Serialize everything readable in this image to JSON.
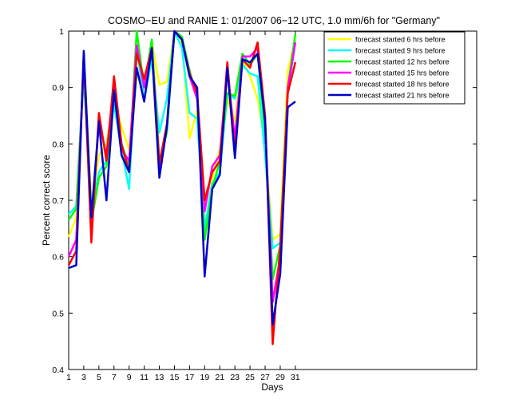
{
  "chart_data": {
    "type": "line",
    "title": "COSMO−EU and RANIE 1: 01/2007 06−12 UTC, 1.0 mm/6h for \"Germany\"",
    "xlabel": "Days",
    "ylabel": "Percent correct score",
    "xlim": [
      1,
      55
    ],
    "ylim": [
      0.4,
      1.0
    ],
    "xticks": [
      1,
      3,
      5,
      7,
      9,
      11,
      13,
      15,
      17,
      19,
      21,
      23,
      25,
      27,
      29,
      31
    ],
    "yticks": [
      0.4,
      0.5,
      0.6,
      0.7,
      0.8,
      0.9,
      1.0
    ],
    "ytick_labels": [
      "0.4",
      "0.5",
      "0.6",
      "0.7",
      "0.8",
      "0.9",
      "1"
    ],
    "legend_position": "top-right",
    "grid": false,
    "x": [
      1,
      2,
      3,
      4,
      5,
      6,
      7,
      8,
      9,
      10,
      11,
      12,
      13,
      14,
      15,
      16,
      17,
      18,
      19,
      20,
      21,
      22,
      23,
      24,
      25,
      26,
      27,
      28,
      29,
      30,
      31
    ],
    "series": [
      {
        "name": "forecast started 6 hrs before",
        "color": "#ffff00",
        "values": [
          0.635,
          0.67,
          0.94,
          0.7,
          0.78,
          0.8,
          0.88,
          0.83,
          0.79,
          0.92,
          0.9,
          0.98,
          0.905,
          0.91,
          1.0,
          0.98,
          0.81,
          0.86,
          0.64,
          0.74,
          0.79,
          0.88,
          0.84,
          0.95,
          0.92,
          0.88,
          0.8,
          0.63,
          0.64,
          0.93,
          0.985
        ]
      },
      {
        "name": "forecast started 9 hrs before",
        "color": "#00ffff",
        "values": [
          0.675,
          0.69,
          0.92,
          0.68,
          0.75,
          0.77,
          0.87,
          0.79,
          0.72,
          0.97,
          0.88,
          0.95,
          0.82,
          0.88,
          1.0,
          0.97,
          0.855,
          0.845,
          0.65,
          0.73,
          0.75,
          0.89,
          0.88,
          0.94,
          0.925,
          0.92,
          0.78,
          0.615,
          0.625,
          0.89,
          0.98
        ]
      },
      {
        "name": "forecast started 12 hrs before",
        "color": "#00ff00",
        "values": [
          0.665,
          0.685,
          0.93,
          0.66,
          0.74,
          0.76,
          0.89,
          0.8,
          0.76,
          1.0,
          0.9,
          0.985,
          0.77,
          0.82,
          1.0,
          0.99,
          0.93,
          0.88,
          0.63,
          0.72,
          0.77,
          0.89,
          0.885,
          0.96,
          0.94,
          0.96,
          0.82,
          0.56,
          0.62,
          0.9,
          0.995
        ]
      },
      {
        "name": "forecast started 15 hrs before",
        "color": "#ff00ff",
        "values": [
          0.6,
          0.63,
          0.95,
          0.65,
          0.84,
          0.78,
          0.91,
          0.79,
          0.77,
          0.975,
          0.9,
          0.97,
          0.76,
          0.83,
          1.0,
          0.985,
          0.92,
          0.88,
          0.68,
          0.76,
          0.78,
          0.93,
          0.81,
          0.955,
          0.955,
          0.97,
          0.84,
          0.52,
          0.6,
          0.9,
          0.98
        ]
      },
      {
        "name": "forecast started 18 hrs before",
        "color": "#ff0000",
        "values": [
          0.585,
          0.61,
          0.96,
          0.625,
          0.855,
          0.77,
          0.92,
          0.8,
          0.75,
          0.96,
          0.915,
          0.97,
          0.765,
          0.835,
          1.0,
          0.985,
          0.925,
          0.89,
          0.7,
          0.75,
          0.77,
          0.945,
          0.785,
          0.95,
          0.935,
          0.98,
          0.85,
          0.445,
          0.62,
          0.89,
          0.945
        ]
      },
      {
        "name": "forecast started 21 hrs before",
        "color": "#0000cc",
        "values": [
          0.58,
          0.585,
          0.965,
          0.67,
          0.84,
          0.7,
          0.895,
          0.78,
          0.75,
          0.935,
          0.875,
          0.97,
          0.74,
          0.83,
          1.0,
          0.985,
          0.92,
          0.9,
          0.565,
          0.72,
          0.745,
          0.935,
          0.775,
          0.95,
          0.945,
          0.96,
          0.84,
          0.48,
          0.57,
          0.865,
          0.875
        ]
      }
    ]
  }
}
